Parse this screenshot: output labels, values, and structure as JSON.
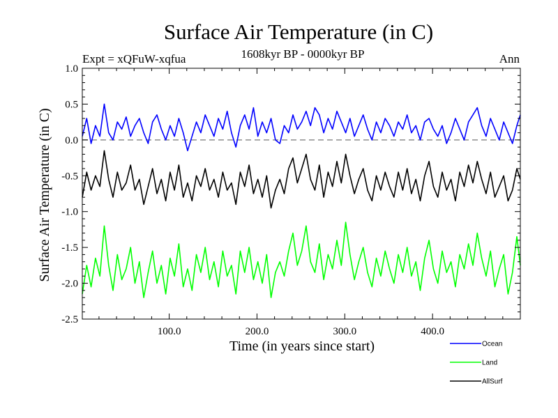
{
  "chart_data": {
    "type": "line",
    "title": "Surface Air Temperature (in C)",
    "subtitle": "1608kyr BP - 0000kyr BP",
    "expt_label": "Expt = xQFuW-xqfua",
    "season_label": "Ann",
    "xlabel": "Time (in years since start)",
    "ylabel": "Surface Air Temperature (in C)",
    "xlim": [
      1,
      500
    ],
    "ylim": [
      -2.5,
      1.0
    ],
    "x_ticks": [
      100,
      200,
      300,
      400
    ],
    "x_tick_labels": [
      "100.0",
      "200.0",
      "300.0",
      "400.0"
    ],
    "y_ticks": [
      1.0,
      0.5,
      0.0,
      -0.5,
      -1.0,
      -1.5,
      -2.0,
      -2.5
    ],
    "y_tick_labels": [
      "1.0",
      "0.5",
      "0.0",
      "-0.5",
      "-1.0",
      "-1.5",
      "-2.0",
      "-2.5"
    ],
    "reference_line": 0.0,
    "legend_position": "bottom-right",
    "series": [
      {
        "name": "Ocean",
        "color": "#0000ff",
        "x": [
          1,
          6,
          11,
          16,
          21,
          26,
          31,
          36,
          41,
          46,
          51,
          56,
          61,
          66,
          71,
          76,
          81,
          86,
          91,
          96,
          101,
          106,
          111,
          116,
          121,
          126,
          131,
          136,
          141,
          146,
          151,
          156,
          161,
          166,
          171,
          176,
          181,
          186,
          191,
          196,
          201,
          206,
          211,
          216,
          221,
          226,
          231,
          236,
          241,
          246,
          251,
          256,
          261,
          266,
          271,
          276,
          281,
          286,
          291,
          296,
          301,
          306,
          311,
          316,
          321,
          326,
          331,
          336,
          341,
          346,
          351,
          356,
          361,
          366,
          371,
          376,
          381,
          386,
          391,
          396,
          401,
          406,
          411,
          416,
          421,
          426,
          431,
          436,
          441,
          446,
          451,
          456,
          461,
          466,
          471,
          476,
          481,
          486,
          491,
          496,
          500
        ],
        "y": [
          0.05,
          0.3,
          -0.05,
          0.2,
          0.05,
          0.5,
          0.1,
          0.0,
          0.25,
          0.15,
          0.32,
          0.05,
          0.2,
          0.3,
          0.1,
          -0.05,
          0.25,
          0.35,
          0.15,
          0.0,
          0.2,
          0.05,
          0.3,
          0.1,
          -0.15,
          0.05,
          0.25,
          0.1,
          0.35,
          0.2,
          0.05,
          0.3,
          0.15,
          0.4,
          0.1,
          -0.1,
          0.2,
          0.35,
          0.15,
          0.45,
          0.05,
          0.25,
          0.1,
          0.3,
          0.0,
          -0.05,
          0.2,
          0.1,
          0.35,
          0.15,
          0.25,
          0.4,
          0.2,
          0.45,
          0.35,
          0.1,
          0.3,
          0.15,
          0.4,
          0.25,
          0.1,
          0.3,
          0.05,
          0.2,
          0.35,
          0.15,
          0.0,
          0.25,
          0.1,
          0.3,
          0.2,
          0.05,
          0.25,
          0.15,
          0.35,
          0.1,
          0.2,
          0.0,
          0.25,
          0.3,
          0.15,
          0.05,
          0.2,
          -0.05,
          0.1,
          0.3,
          0.15,
          0.0,
          0.25,
          0.35,
          0.45,
          0.2,
          0.05,
          0.3,
          0.15,
          0.0,
          0.25,
          0.1,
          -0.05,
          0.2,
          0.35
        ]
      },
      {
        "name": "Land",
        "color": "#00ff00",
        "x": [
          1,
          6,
          11,
          16,
          21,
          26,
          31,
          36,
          41,
          46,
          51,
          56,
          61,
          66,
          71,
          76,
          81,
          86,
          91,
          96,
          101,
          106,
          111,
          116,
          121,
          126,
          131,
          136,
          141,
          146,
          151,
          156,
          161,
          166,
          171,
          176,
          181,
          186,
          191,
          196,
          201,
          206,
          211,
          216,
          221,
          226,
          231,
          236,
          241,
          246,
          251,
          256,
          261,
          266,
          271,
          276,
          281,
          286,
          291,
          296,
          301,
          306,
          311,
          316,
          321,
          326,
          331,
          336,
          341,
          346,
          351,
          356,
          361,
          366,
          371,
          376,
          381,
          386,
          391,
          396,
          401,
          406,
          411,
          416,
          421,
          426,
          431,
          436,
          441,
          446,
          451,
          456,
          461,
          466,
          471,
          476,
          481,
          486,
          491,
          496,
          500
        ],
        "y": [
          -2.15,
          -1.75,
          -2.05,
          -1.65,
          -1.9,
          -1.2,
          -1.75,
          -2.1,
          -1.6,
          -1.95,
          -1.8,
          -1.5,
          -2.0,
          -1.7,
          -2.2,
          -1.85,
          -1.55,
          -2.0,
          -1.75,
          -2.15,
          -1.65,
          -1.9,
          -1.45,
          -2.05,
          -1.8,
          -2.1,
          -1.6,
          -1.85,
          -1.5,
          -1.95,
          -1.7,
          -2.05,
          -1.55,
          -1.9,
          -1.75,
          -2.15,
          -1.55,
          -1.85,
          -1.5,
          -1.95,
          -1.7,
          -2.0,
          -1.6,
          -2.2,
          -1.85,
          -1.7,
          -1.9,
          -1.55,
          -1.3,
          -1.75,
          -1.55,
          -1.2,
          -1.7,
          -1.85,
          -1.45,
          -1.95,
          -1.6,
          -1.8,
          -1.4,
          -1.75,
          -1.15,
          -1.6,
          -1.95,
          -1.7,
          -1.5,
          -1.85,
          -2.05,
          -1.65,
          -1.9,
          -1.55,
          -1.8,
          -2.0,
          -1.6,
          -1.85,
          -1.5,
          -1.9,
          -1.7,
          -2.1,
          -1.65,
          -1.4,
          -1.8,
          -2.0,
          -1.55,
          -1.85,
          -1.7,
          -2.05,
          -1.6,
          -1.8,
          -1.45,
          -1.75,
          -1.3,
          -1.65,
          -1.9,
          -1.55,
          -2.05,
          -1.8,
          -1.6,
          -2.15,
          -1.85,
          -1.35,
          -1.75
        ]
      },
      {
        "name": "AllSurf",
        "color": "#000000",
        "x": [
          1,
          6,
          11,
          16,
          21,
          26,
          31,
          36,
          41,
          46,
          51,
          56,
          61,
          66,
          71,
          76,
          81,
          86,
          91,
          96,
          101,
          106,
          111,
          116,
          121,
          126,
          131,
          136,
          141,
          146,
          151,
          156,
          161,
          166,
          171,
          176,
          181,
          186,
          191,
          196,
          201,
          206,
          211,
          216,
          221,
          226,
          231,
          236,
          241,
          246,
          251,
          256,
          261,
          266,
          271,
          276,
          281,
          286,
          291,
          296,
          301,
          306,
          311,
          316,
          321,
          326,
          331,
          336,
          341,
          346,
          351,
          356,
          361,
          366,
          371,
          376,
          381,
          386,
          391,
          396,
          401,
          406,
          411,
          416,
          421,
          426,
          431,
          436,
          441,
          446,
          451,
          456,
          461,
          466,
          471,
          476,
          481,
          486,
          491,
          496,
          500
        ],
        "y": [
          -0.8,
          -0.45,
          -0.7,
          -0.5,
          -0.65,
          -0.15,
          -0.55,
          -0.8,
          -0.45,
          -0.7,
          -0.6,
          -0.35,
          -0.7,
          -0.55,
          -0.9,
          -0.65,
          -0.4,
          -0.75,
          -0.55,
          -0.85,
          -0.45,
          -0.7,
          -0.35,
          -0.8,
          -0.6,
          -0.85,
          -0.5,
          -0.65,
          -0.4,
          -0.7,
          -0.55,
          -0.8,
          -0.45,
          -0.7,
          -0.6,
          -0.9,
          -0.45,
          -0.65,
          -0.35,
          -0.75,
          -0.55,
          -0.8,
          -0.5,
          -0.95,
          -0.7,
          -0.55,
          -0.75,
          -0.4,
          -0.25,
          -0.6,
          -0.4,
          -0.2,
          -0.55,
          -0.7,
          -0.35,
          -0.8,
          -0.45,
          -0.65,
          -0.3,
          -0.6,
          -0.2,
          -0.5,
          -0.75,
          -0.55,
          -0.4,
          -0.7,
          -0.85,
          -0.5,
          -0.7,
          -0.45,
          -0.65,
          -0.8,
          -0.45,
          -0.7,
          -0.4,
          -0.75,
          -0.55,
          -0.85,
          -0.5,
          -0.3,
          -0.65,
          -0.8,
          -0.45,
          -0.7,
          -0.55,
          -0.85,
          -0.45,
          -0.65,
          -0.35,
          -0.6,
          -0.3,
          -0.55,
          -0.75,
          -0.45,
          -0.8,
          -0.65,
          -0.5,
          -0.85,
          -0.7,
          -0.4,
          -0.55
        ]
      }
    ]
  }
}
